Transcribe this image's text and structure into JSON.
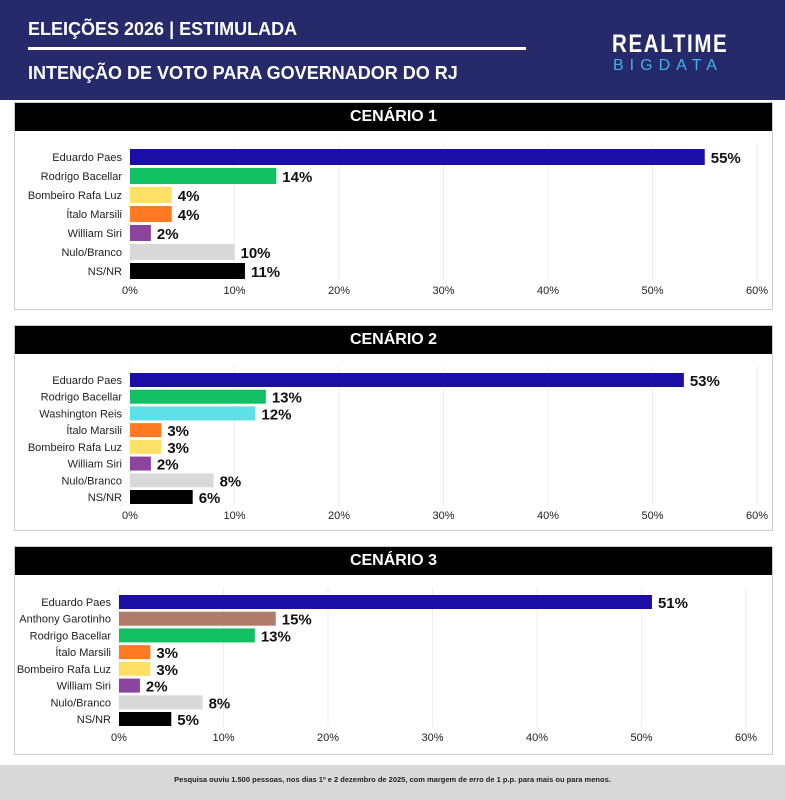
{
  "header": {
    "title": "ELEIÇÕES 2026 | ESTIMULADA",
    "subtitle": "INTENÇÃO DE VOTO PARA GOVERNADOR DO RJ",
    "logo_top": "REALTIME",
    "logo_bottom": "BIGDATA"
  },
  "footer": "Pesquisa ouviu 1.500 pessoas, nos dias 1º e 2 dezembro de 2025, com margem de erro de 1 p.p. para mais ou para menos.",
  "colors": {
    "Eduardo Paes": "#1c0fa6",
    "Rodrigo Bacellar": "#12c064",
    "Bombeiro Rafa Luz": "#ffe066",
    "Ítalo Marsili": "#ff7a22",
    "William Siri": "#8c459e",
    "Nulo/Branco": "#d9d9d9",
    "NS/NR": "#000000",
    "Washington Reis": "#5fe0e8",
    "Anthony Garotinho": "#b27c6a"
  },
  "chart_data": [
    {
      "type": "bar",
      "title": "CENÁRIO 1",
      "xlim": [
        0,
        60
      ],
      "ticks": [
        "0%",
        "10%",
        "20%",
        "30%",
        "40%",
        "50%",
        "60%"
      ],
      "categories": [
        "Eduardo Paes",
        "Rodrigo Bacellar",
        "Bombeiro Rafa Luz",
        "Ítalo Marsili",
        "William Siri",
        "Nulo/Branco",
        "NS/NR"
      ],
      "values": [
        55,
        14,
        4,
        4,
        2,
        10,
        11
      ],
      "labels": [
        "55%",
        "14%",
        "4%",
        "4%",
        "2%",
        "10%",
        "11%"
      ]
    },
    {
      "type": "bar",
      "title": "CENÁRIO 2",
      "xlim": [
        0,
        60
      ],
      "ticks": [
        "0%",
        "10%",
        "20%",
        "30%",
        "40%",
        "50%",
        "60%"
      ],
      "categories": [
        "Eduardo Paes",
        "Rodrigo Bacellar",
        "Washington Reis",
        "Ítalo Marsili",
        "Bombeiro Rafa Luz",
        "William Siri",
        "Nulo/Branco",
        "NS/NR"
      ],
      "values": [
        53,
        13,
        12,
        3,
        3,
        2,
        8,
        6
      ],
      "labels": [
        "53%",
        "13%",
        "12%",
        "3%",
        "3%",
        "2%",
        "8%",
        "6%"
      ]
    },
    {
      "type": "bar",
      "title": "CENÁRIO 3",
      "xlim": [
        0,
        60
      ],
      "ticks": [
        "0%",
        "10%",
        "20%",
        "30%",
        "40%",
        "50%",
        "60%"
      ],
      "categories": [
        "Eduardo Paes",
        "Anthony Garotinho",
        "Rodrigo Bacellar",
        "Ítalo Marsili",
        "Bombeiro Rafa Luz",
        "William Siri",
        "Nulo/Branco",
        "NS/NR"
      ],
      "values": [
        51,
        15,
        13,
        3,
        3,
        2,
        8,
        5
      ],
      "labels": [
        "51%",
        "15%",
        "13%",
        "3%",
        "3%",
        "2%",
        "8%",
        "5%"
      ]
    }
  ]
}
